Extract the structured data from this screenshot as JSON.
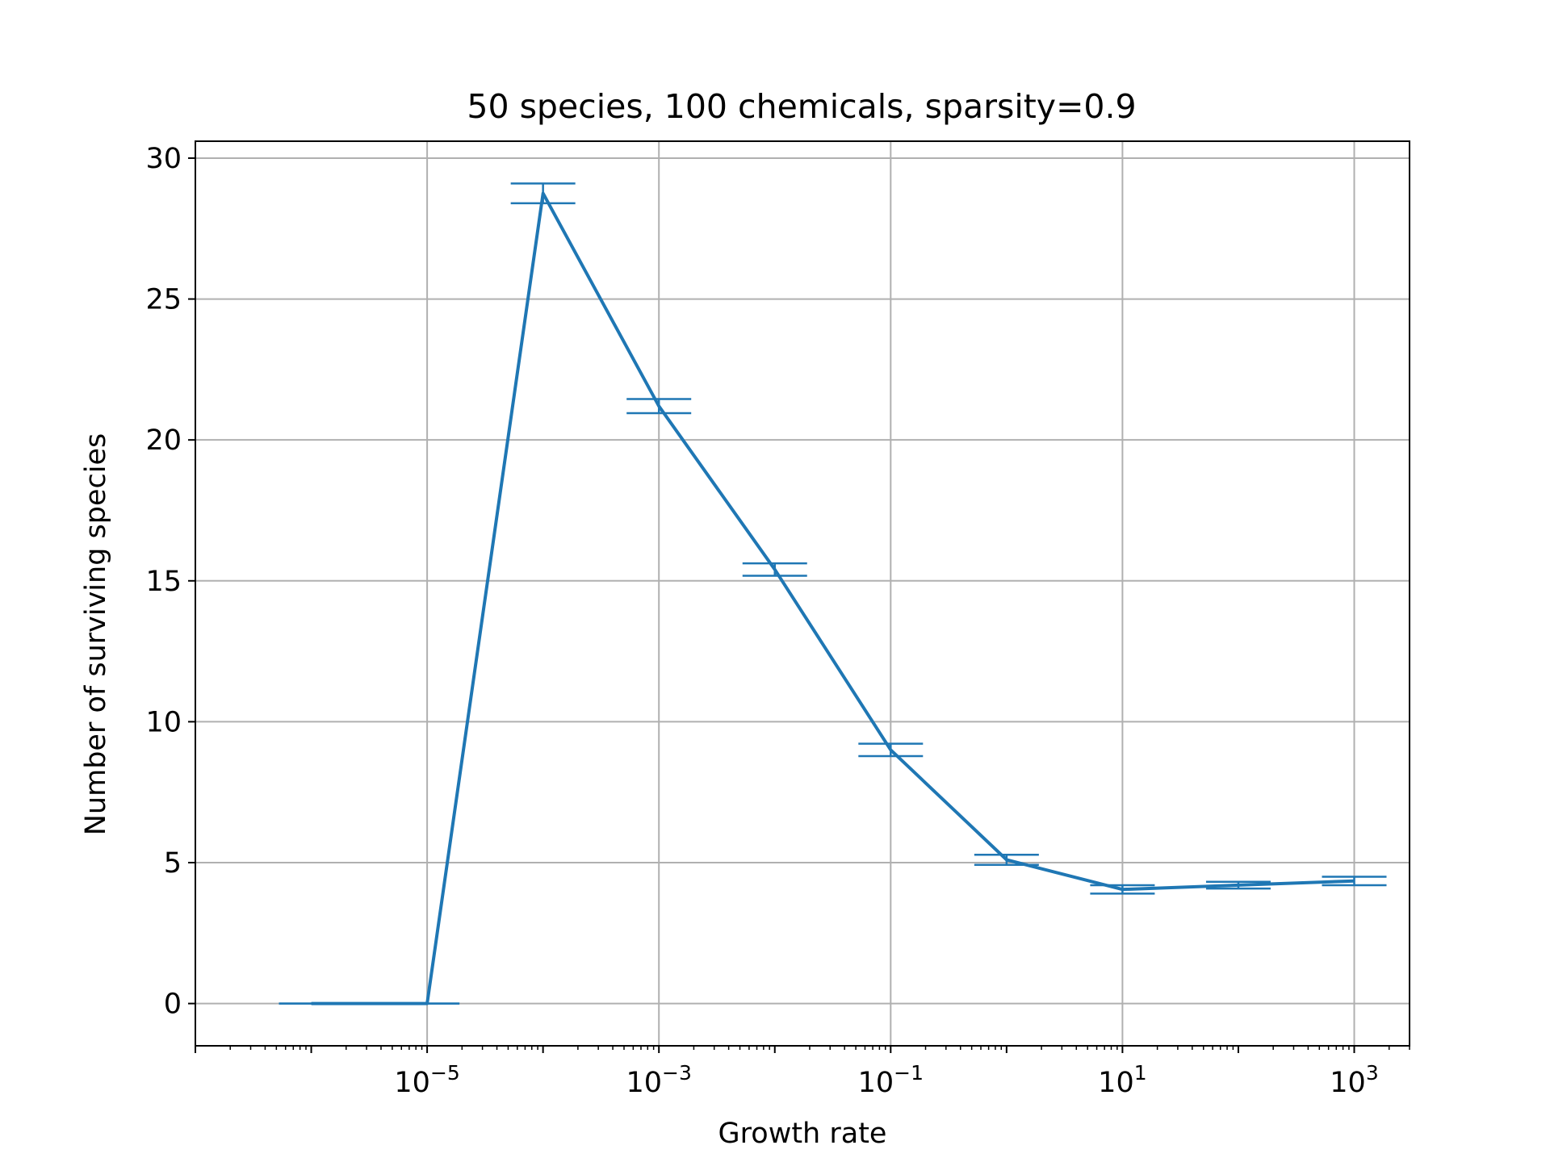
{
  "chart_data": {
    "type": "line",
    "title": "50 species, 100 chemicals, sparsity=0.9",
    "xlabel": "Growth rate",
    "ylabel": "Number of surviving species",
    "xscale": "log",
    "xlim": [
      1e-07,
      3000
    ],
    "ylim": [
      -1.5,
      30.6
    ],
    "grid": true,
    "x_ticks": [
      {
        "value": 1e-05,
        "base": "10",
        "exp": "−5"
      },
      {
        "value": 0.001,
        "base": "10",
        "exp": "−3"
      },
      {
        "value": 0.1,
        "base": "10",
        "exp": "−1"
      },
      {
        "value": 10,
        "base": "10",
        "exp": "1"
      },
      {
        "value": 1000,
        "base": "10",
        "exp": "3"
      }
    ],
    "y_ticks": [
      0,
      5,
      10,
      15,
      20,
      25,
      30
    ],
    "series": [
      {
        "color": "#1f77b4",
        "x": [
          1e-06,
          1e-05,
          0.0001,
          0.001,
          0.01,
          0.1,
          1,
          10,
          100,
          1000
        ],
        "y": [
          0,
          0,
          28.75,
          21.2,
          15.4,
          9.0,
          5.1,
          4.05,
          4.2,
          4.35
        ],
        "yerr": [
          0,
          0,
          0.35,
          0.25,
          0.22,
          0.22,
          0.18,
          0.15,
          0.12,
          0.15
        ]
      }
    ]
  }
}
